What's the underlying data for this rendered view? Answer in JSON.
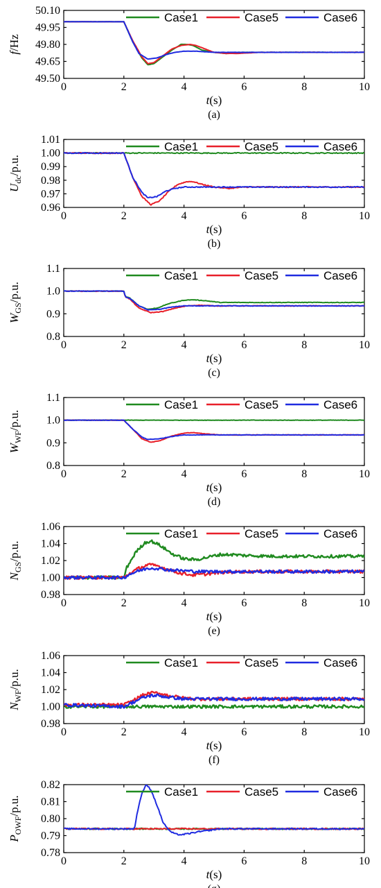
{
  "colors": {
    "Case1": "#1f8a1f",
    "Case5": "#e8202a",
    "Case6": "#1f2be0"
  },
  "legend": [
    "Case1",
    "Case5",
    "Case6"
  ],
  "chart_data": [
    {
      "type": "line",
      "caption": "(a)",
      "xlabel": {
        "main": "t",
        "unit": "(s)"
      },
      "ylabel": {
        "main": "f",
        "sub": "",
        "unit": "/Hz"
      },
      "xlim": [
        0,
        10
      ],
      "ylim": [
        49.5,
        50.1
      ],
      "xticks": [
        0,
        2,
        4,
        6,
        8,
        10
      ],
      "yticks": [
        "49.50",
        "49.65",
        "49.80",
        "49.95",
        "50.10"
      ],
      "series": [
        {
          "name": "Case1",
          "x": [
            0,
            2,
            2.3,
            2.6,
            2.8,
            3.0,
            3.3,
            3.6,
            3.9,
            4.1,
            4.3,
            4.6,
            5.0,
            5.4,
            5.8,
            6.5,
            10
          ],
          "y": [
            50.0,
            50.0,
            49.82,
            49.68,
            49.62,
            49.63,
            49.69,
            49.75,
            49.8,
            49.8,
            49.79,
            49.75,
            49.73,
            49.72,
            49.73,
            49.73,
            49.73
          ]
        },
        {
          "name": "Case5",
          "x": [
            0,
            2,
            2.3,
            2.6,
            2.8,
            3.0,
            3.3,
            3.6,
            3.9,
            4.2,
            4.4,
            4.7,
            5.0,
            5.4,
            5.8,
            6.5,
            10
          ],
          "y": [
            50.0,
            50.0,
            49.83,
            49.69,
            49.63,
            49.64,
            49.7,
            49.76,
            49.79,
            49.8,
            49.79,
            49.76,
            49.73,
            49.72,
            49.72,
            49.73,
            49.73
          ]
        },
        {
          "name": "Case6",
          "x": [
            0,
            2,
            2.3,
            2.5,
            2.8,
            3.1,
            3.4,
            3.7,
            4.0,
            4.4,
            5.0,
            10
          ],
          "y": [
            50.0,
            50.0,
            49.82,
            49.72,
            49.67,
            49.68,
            49.71,
            49.73,
            49.74,
            49.74,
            49.73,
            49.73
          ]
        }
      ]
    },
    {
      "type": "line",
      "caption": "(b)",
      "xlabel": {
        "main": "t",
        "unit": "(s)"
      },
      "ylabel": {
        "main": "U",
        "sub": "dc",
        "unit": "/p.u."
      },
      "xlim": [
        0,
        10
      ],
      "ylim": [
        0.96,
        1.01
      ],
      "xticks": [
        0,
        2,
        4,
        6,
        8,
        10
      ],
      "yticks": [
        "0.96",
        "0.97",
        "0.98",
        "0.99",
        "1.00",
        "1.01"
      ],
      "series": [
        {
          "name": "Case1",
          "x": [
            0,
            10
          ],
          "y": [
            1.0,
            1.0
          ]
        },
        {
          "name": "Case5",
          "x": [
            0,
            2,
            2.3,
            2.6,
            2.9,
            3.2,
            3.5,
            3.8,
            4.1,
            4.3,
            4.6,
            5.0,
            5.5,
            6.0,
            7.0,
            10
          ],
          "y": [
            1.0,
            1.0,
            0.982,
            0.968,
            0.962,
            0.965,
            0.972,
            0.977,
            0.979,
            0.979,
            0.977,
            0.975,
            0.974,
            0.975,
            0.975,
            0.975
          ]
        },
        {
          "name": "Case6",
          "x": [
            0,
            2,
            2.3,
            2.6,
            2.8,
            3.1,
            3.4,
            3.7,
            4.0,
            4.5,
            5.0,
            10
          ],
          "y": [
            1.0,
            1.0,
            0.982,
            0.971,
            0.967,
            0.968,
            0.972,
            0.974,
            0.975,
            0.975,
            0.975,
            0.975
          ]
        }
      ]
    },
    {
      "type": "line",
      "caption": "(c)",
      "xlabel": {
        "main": "t",
        "unit": "(s)"
      },
      "ylabel": {
        "main": "W",
        "sub": "GS",
        "unit": "/p.u."
      },
      "xlim": [
        0,
        10
      ],
      "ylim": [
        0.8,
        1.1
      ],
      "xticks": [
        0,
        2,
        4,
        6,
        8,
        10
      ],
      "yticks": [
        "0.8",
        "0.9",
        "1.0",
        "1.1"
      ],
      "series": [
        {
          "name": "Case1",
          "x": [
            0,
            2,
            2.05,
            2.2,
            2.5,
            2.8,
            3.1,
            3.5,
            4.0,
            4.3,
            4.7,
            5.2,
            6.0,
            10
          ],
          "y": [
            1.0,
            1.0,
            0.975,
            0.97,
            0.935,
            0.92,
            0.925,
            0.945,
            0.96,
            0.962,
            0.958,
            0.95,
            0.95,
            0.95
          ]
        },
        {
          "name": "Case5",
          "x": [
            0,
            2,
            2.05,
            2.2,
            2.5,
            2.9,
            3.3,
            3.7,
            4.1,
            4.5,
            5.0,
            10
          ],
          "y": [
            1.0,
            1.0,
            0.975,
            0.965,
            0.925,
            0.905,
            0.91,
            0.925,
            0.935,
            0.938,
            0.935,
            0.935
          ]
        },
        {
          "name": "Case6",
          "x": [
            0,
            2,
            2.05,
            2.2,
            2.5,
            2.8,
            3.2,
            3.6,
            4.0,
            5.0,
            10
          ],
          "y": [
            1.0,
            1.0,
            0.975,
            0.968,
            0.935,
            0.918,
            0.92,
            0.93,
            0.935,
            0.935,
            0.935
          ]
        }
      ]
    },
    {
      "type": "line",
      "caption": "(d)",
      "xlabel": {
        "main": "t",
        "unit": "(s)"
      },
      "ylabel": {
        "main": "W",
        "sub": "WF",
        "unit": "/p.u."
      },
      "xlim": [
        0,
        10
      ],
      "ylim": [
        0.8,
        1.1
      ],
      "xticks": [
        0,
        2,
        4,
        6,
        8,
        10
      ],
      "yticks": [
        "0.8",
        "0.9",
        "1.0",
        "1.1"
      ],
      "series": [
        {
          "name": "Case1",
          "x": [
            0,
            10
          ],
          "y": [
            1.0,
            1.0
          ]
        },
        {
          "name": "Case5",
          "x": [
            0,
            2,
            2.3,
            2.6,
            2.9,
            3.2,
            3.6,
            4.0,
            4.3,
            4.7,
            5.2,
            6.0,
            10
          ],
          "y": [
            1.0,
            1.0,
            0.96,
            0.918,
            0.902,
            0.91,
            0.93,
            0.943,
            0.945,
            0.94,
            0.935,
            0.935,
            0.935
          ]
        },
        {
          "name": "Case6",
          "x": [
            0,
            2,
            2.3,
            2.6,
            2.8,
            3.2,
            3.6,
            4.0,
            4.5,
            5.0,
            10
          ],
          "y": [
            1.0,
            1.0,
            0.96,
            0.925,
            0.915,
            0.918,
            0.928,
            0.935,
            0.935,
            0.935,
            0.935
          ]
        }
      ]
    },
    {
      "type": "line",
      "caption": "(e)",
      "xlabel": {
        "main": "t",
        "unit": "(s)"
      },
      "ylabel": {
        "main": "N",
        "sub": "GS",
        "unit": "/p.u."
      },
      "xlim": [
        0,
        10
      ],
      "ylim": [
        0.98,
        1.06
      ],
      "xticks": [
        0,
        2,
        4,
        6,
        8,
        10
      ],
      "yticks": [
        "0.98",
        "1.00",
        "1.02",
        "1.04",
        "1.06"
      ],
      "series": [
        {
          "name": "Case1",
          "x": [
            0,
            2,
            2.1,
            2.4,
            2.7,
            2.9,
            3.2,
            3.6,
            4.0,
            4.4,
            4.8,
            5.2,
            5.6,
            6.0,
            7.0,
            10
          ],
          "y": [
            1.0,
            1.0,
            1.012,
            1.03,
            1.041,
            1.043,
            1.038,
            1.028,
            1.022,
            1.021,
            1.024,
            1.027,
            1.027,
            1.026,
            1.025,
            1.025
          ]
        },
        {
          "name": "Case5",
          "x": [
            0,
            2,
            2.2,
            2.5,
            2.8,
            3.1,
            3.5,
            3.9,
            4.3,
            4.7,
            5.2,
            6.0,
            10
          ],
          "y": [
            1.0,
            1.0,
            1.005,
            1.011,
            1.015,
            1.014,
            1.009,
            1.005,
            1.003,
            1.004,
            1.006,
            1.007,
            1.007
          ]
        },
        {
          "name": "Case6",
          "x": [
            0,
            2,
            2.2,
            2.5,
            2.8,
            3.1,
            3.5,
            4.0,
            4.5,
            5.0,
            6.0,
            10
          ],
          "y": [
            1.0,
            1.0,
            1.004,
            1.008,
            1.011,
            1.011,
            1.009,
            1.008,
            1.007,
            1.007,
            1.007,
            1.007
          ]
        }
      ]
    },
    {
      "type": "line",
      "caption": "(f)",
      "xlabel": {
        "main": "t",
        "unit": "(s)"
      },
      "ylabel": {
        "main": "N",
        "sub": "WF",
        "unit": "/p.u."
      },
      "xlim": [
        0,
        10
      ],
      "ylim": [
        0.98,
        1.06
      ],
      "xticks": [
        0,
        2,
        4,
        6,
        8,
        10
      ],
      "yticks": [
        "0.98",
        "1.00",
        "1.02",
        "1.04",
        "1.06"
      ],
      "series": [
        {
          "name": "Case1",
          "x": [
            0,
            10
          ],
          "y": [
            1.0,
            1.0
          ]
        },
        {
          "name": "Case5",
          "x": [
            0,
            2,
            2.3,
            2.6,
            2.9,
            3.1,
            3.5,
            4.0,
            4.5,
            5.0,
            6.0,
            10
          ],
          "y": [
            1.002,
            1.002,
            1.007,
            1.013,
            1.016,
            1.016,
            1.013,
            1.01,
            1.009,
            1.009,
            1.009,
            1.009
          ]
        },
        {
          "name": "Case6",
          "x": [
            0,
            2,
            2.3,
            2.6,
            2.9,
            3.1,
            3.5,
            4.0,
            4.5,
            5.0,
            6.0,
            10
          ],
          "y": [
            1.002,
            1.0,
            1.005,
            1.01,
            1.013,
            1.013,
            1.011,
            1.009,
            1.009,
            1.009,
            1.009,
            1.009
          ]
        }
      ]
    },
    {
      "type": "line",
      "caption": "(g)",
      "xlabel": {
        "main": "t",
        "unit": "(s)"
      },
      "ylabel": {
        "main": "P",
        "sub": "OWF",
        "unit": "/p.u."
      },
      "xlim": [
        0,
        10
      ],
      "ylim": [
        0.78,
        0.82
      ],
      "xticks": [
        0,
        2,
        4,
        6,
        8,
        10
      ],
      "yticks": [
        "0.78",
        "0.79",
        "0.80",
        "0.81",
        "0.82"
      ],
      "series": [
        {
          "name": "Case1",
          "x": [
            0,
            10
          ],
          "y": [
            0.794,
            0.794
          ]
        },
        {
          "name": "Case5",
          "x": [
            0,
            10
          ],
          "y": [
            0.794,
            0.794
          ]
        },
        {
          "name": "Case6",
          "x": [
            0,
            2.35,
            2.45,
            2.6,
            2.75,
            2.9,
            3.1,
            3.3,
            3.5,
            3.7,
            3.9,
            4.1,
            4.4,
            4.8,
            5.2,
            10
          ],
          "y": [
            0.794,
            0.794,
            0.804,
            0.815,
            0.82,
            0.817,
            0.808,
            0.798,
            0.793,
            0.791,
            0.7905,
            0.791,
            0.792,
            0.793,
            0.794,
            0.794
          ]
        }
      ]
    }
  ]
}
